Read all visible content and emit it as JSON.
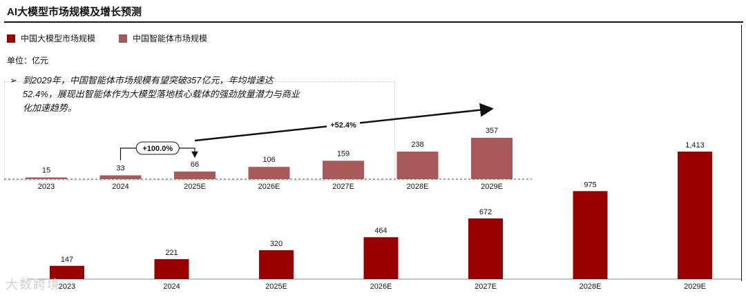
{
  "title": "AI大模型市场规模及增长预测",
  "unit": "单位：亿元",
  "note": "到2029年，中国智能体市场规模有望突破357亿元，年均增速达52.4%，展现出智能体作为大模型落地核心载体的强劲放量潜力与商业化加速趋势。",
  "colors": {
    "llm": "#990000",
    "agent": "#a85a5a"
  },
  "watermark": "大数跨境",
  "chart_data": {
    "type": "bar",
    "categories": [
      "2023",
      "2024",
      "2025E",
      "2026E",
      "2027E",
      "2028E",
      "2029E"
    ],
    "series": [
      {
        "name": "中国大模型市场规模",
        "values": [
          147,
          221,
          320,
          464,
          672,
          975,
          1413
        ],
        "labels": [
          "147",
          "221",
          "320",
          "464",
          "672",
          "975",
          "1,413"
        ]
      },
      {
        "name": "中国智能体市场规模",
        "values": [
          15,
          33,
          66,
          106,
          159,
          238,
          357
        ],
        "labels": [
          "15",
          "33",
          "66",
          "106",
          "159",
          "238",
          "357"
        ]
      }
    ],
    "legend": "top-left",
    "annotations": [
      {
        "text": "+100.0%",
        "from": "2024",
        "to": "2025E",
        "series": "中国智能体市场规模"
      },
      {
        "text": "+52.4%",
        "series": "中国智能体市场规模"
      }
    ]
  }
}
